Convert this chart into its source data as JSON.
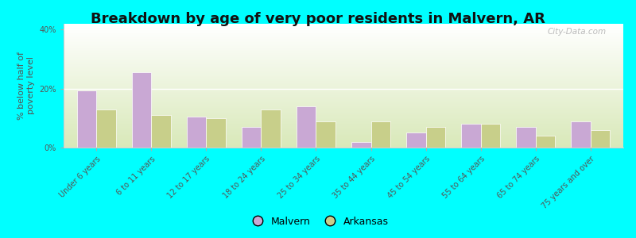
{
  "categories": [
    "Under 6 years",
    "6 to 11 years",
    "12 to 17 years",
    "18 to 24 years",
    "25 to 34 years",
    "35 to 44 years",
    "45 to 54 years",
    "55 to 64 years",
    "65 to 74 years",
    "75 years and over"
  ],
  "malvern_values": [
    19.5,
    25.5,
    10.5,
    7.0,
    14.0,
    2.0,
    5.0,
    8.0,
    7.0,
    9.0
  ],
  "arkansas_values": [
    13.0,
    11.0,
    10.0,
    13.0,
    9.0,
    9.0,
    7.0,
    8.0,
    4.0,
    6.0
  ],
  "malvern_color": "#c9a8d4",
  "arkansas_color": "#c8cf8a",
  "title": "Breakdown by age of very poor residents in Malvern, AR",
  "ylabel": "% below half of\npoverty level",
  "ylim": [
    0,
    42
  ],
  "yticks": [
    0,
    20,
    40
  ],
  "ytick_labels": [
    "0%",
    "20%",
    "40%"
  ],
  "bg_top": "#ffffff",
  "bg_bottom": "#d8e8b8",
  "outer_bg": "#00ffff",
  "bar_width": 0.35,
  "legend_malvern": "Malvern",
  "legend_arkansas": "Arkansas",
  "title_fontsize": 13,
  "axis_label_fontsize": 8,
  "tick_fontsize": 7,
  "legend_fontsize": 9,
  "watermark": "City-Data.com"
}
